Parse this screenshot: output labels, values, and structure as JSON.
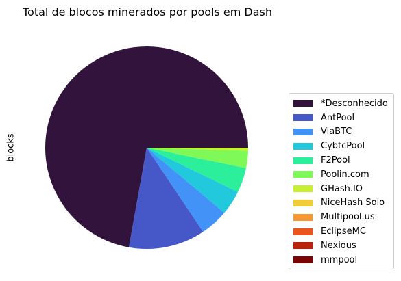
{
  "chart_data": {
    "type": "pie",
    "title": "Total de blocos minerados por pools em Dash",
    "ylabel": "blocks",
    "legend_position": "center-right",
    "labels": [
      "*Desconhecido",
      "AntPool",
      "ViaBTC",
      "CybtcPool",
      "F2Pool",
      "Poolin.com",
      "GHash.IO",
      "NiceHash Solo",
      "Multipool.us",
      "EclipseMC",
      "Nexious",
      "mmpool"
    ],
    "values": [
      74.0,
      12.5,
      4.6,
      4.0,
      4.1,
      2.8,
      0.5,
      0.0,
      0.0,
      0.0,
      0.0,
      0.0
    ],
    "colors": [
      "#32133c",
      "#4658c8",
      "#4392f8",
      "#22c8dc",
      "#2cef9c",
      "#7ff957",
      "#c8ef34",
      "#f0cb3a",
      "#f89632",
      "#e9561c",
      "#ba240b",
      "#7a0403"
    ]
  }
}
